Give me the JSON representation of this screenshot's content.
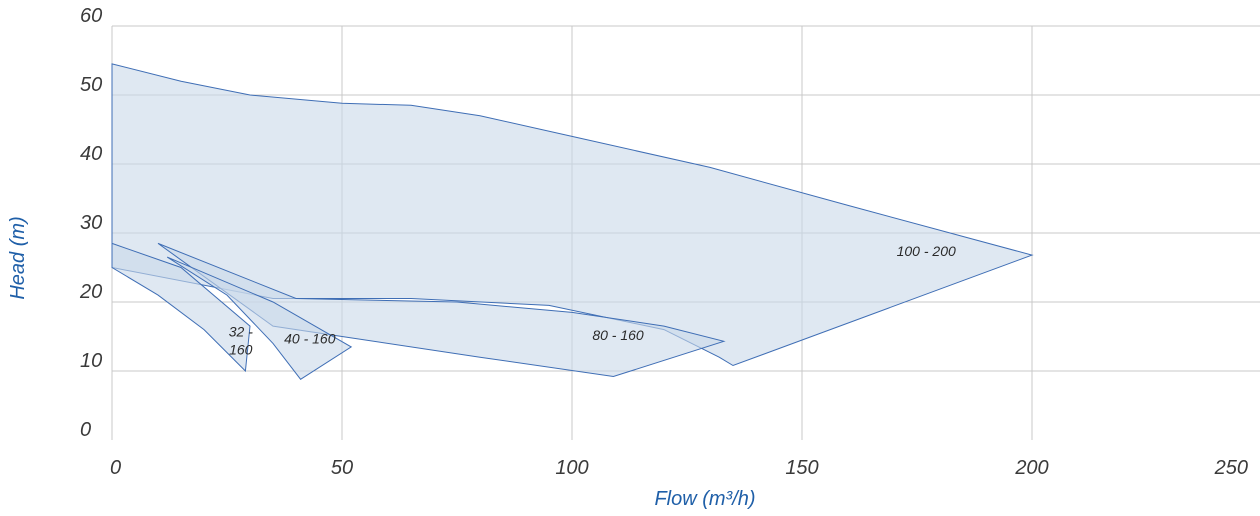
{
  "chart_data": {
    "type": "area",
    "xlabel": "Flow (m³/h)",
    "ylabel": "Head (m)",
    "xlim": [
      0,
      250
    ],
    "ylim": [
      0,
      60
    ],
    "xticks": [
      0,
      50,
      100,
      150,
      200,
      250
    ],
    "yticks": [
      0,
      10,
      20,
      30,
      40,
      50,
      60
    ],
    "grid": true,
    "colors": {
      "fill": "#c9d8e9",
      "stroke": "#3f6eb5",
      "axis_title": "#1f5fa8",
      "tick": "#3a3a3a"
    },
    "regions": [
      {
        "name": "100 - 200",
        "label_at": [
          177,
          26.7
        ],
        "points": [
          [
            0,
            54.5
          ],
          [
            15,
            52
          ],
          [
            30,
            50
          ],
          [
            50,
            48.8
          ],
          [
            65,
            48.5
          ],
          [
            80,
            47
          ],
          [
            100,
            44
          ],
          [
            130,
            39.5
          ],
          [
            160,
            34
          ],
          [
            200,
            26.8
          ],
          [
            135,
            10.8
          ],
          [
            132,
            12
          ],
          [
            120,
            16
          ],
          [
            95,
            19.5
          ],
          [
            65,
            20.5
          ],
          [
            35,
            20.5
          ],
          [
            0,
            25
          ]
        ]
      },
      {
        "name": "80 - 160",
        "label_at": [
          110,
          14.5
        ],
        "points": [
          [
            10,
            28.5
          ],
          [
            40,
            20.5
          ],
          [
            75,
            20
          ],
          [
            100,
            18.5
          ],
          [
            120,
            16.5
          ],
          [
            133,
            14.3
          ],
          [
            109,
            9.2
          ],
          [
            80,
            12
          ],
          [
            50,
            15
          ],
          [
            35,
            16.5
          ]
        ]
      },
      {
        "name": "40 - 160",
        "label_at": [
          43,
          14
        ],
        "points": [
          [
            12,
            26.5
          ],
          [
            35,
            20
          ],
          [
            52,
            13.5
          ],
          [
            41,
            8.8
          ],
          [
            35,
            14
          ],
          [
            25,
            21
          ]
        ]
      },
      {
        "name": "32 -\n160",
        "label_at": [
          28,
          15
        ],
        "points": [
          [
            0,
            28.5
          ],
          [
            15,
            25
          ],
          [
            30,
            16.5
          ],
          [
            29,
            10
          ],
          [
            20,
            16
          ],
          [
            10,
            21
          ],
          [
            0,
            25
          ]
        ]
      }
    ]
  }
}
